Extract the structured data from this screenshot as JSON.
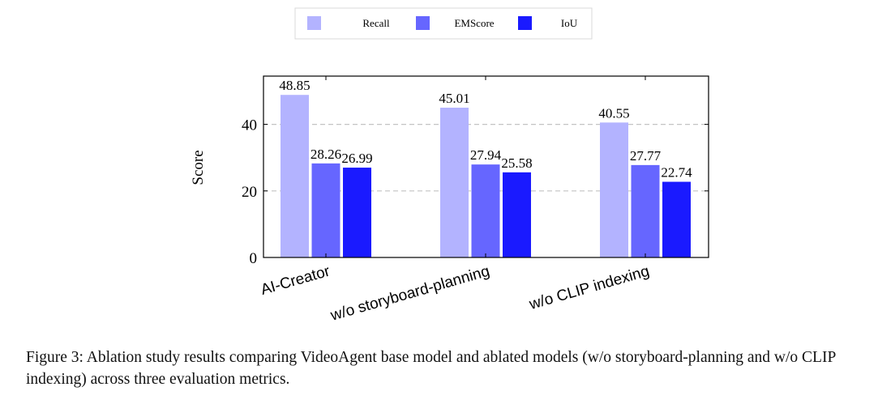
{
  "chart_data": {
    "type": "bar",
    "categories": [
      "AI-Creator",
      "w/o storyboard-planning",
      "w/o CLIP indexing"
    ],
    "series": [
      {
        "name": "Recall",
        "color": "#b3b3ff",
        "values": [
          48.85,
          45.01,
          40.55
        ]
      },
      {
        "name": "EMScore",
        "color": "#6666ff",
        "values": [
          28.26,
          27.94,
          27.77
        ]
      },
      {
        "name": "IoU",
        "color": "#1a1aff",
        "values": [
          26.99,
          25.58,
          22.74
        ]
      }
    ],
    "value_labels": [
      [
        "48.85",
        "45.01",
        "40.55"
      ],
      [
        "28.26",
        "27.94",
        "27.77"
      ],
      [
        "26.99",
        "25.58",
        "22.74"
      ]
    ],
    "ylabel": "Score",
    "ylim": [
      0,
      54.5
    ],
    "yticks": [
      0,
      20,
      40
    ],
    "grid": "dashed horizontal",
    "legend": "top-center"
  },
  "caption": "Figure 3: Ablation study results comparing VideoAgent base model and ablated models (w/o storyboard-planning and w/o CLIP indexing) across three evaluation metrics."
}
